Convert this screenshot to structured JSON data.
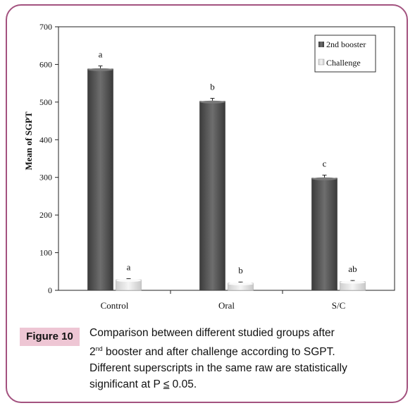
{
  "chart_data": {
    "type": "bar",
    "categories": [
      "Control",
      "Oral",
      "S/C"
    ],
    "series": [
      {
        "name": "2nd booster",
        "values": [
          588,
          502,
          298
        ],
        "errors": [
          8,
          8,
          8
        ],
        "letters": [
          "a",
          "b",
          "c"
        ],
        "color": "#555555"
      },
      {
        "name": "Challenge",
        "values": [
          28,
          19,
          23
        ],
        "errors": [
          3,
          3,
          3
        ],
        "letters": [
          "a",
          "b",
          "ab"
        ],
        "color": "#e6e6e6"
      }
    ],
    "ylabel": "Mean of SGPT",
    "xlabel": "",
    "ylim": [
      0,
      700
    ],
    "yticks": [
      0,
      100,
      200,
      300,
      400,
      500,
      600,
      700
    ],
    "legend_position": "top-right"
  },
  "caption": {
    "label": "Figure 10",
    "line1": "Comparison between different studied groups after",
    "line2_pre": "2",
    "line2_sup": "nd",
    "line2_post": " booster and after challenge according to SGPT.",
    "line3": "Different superscripts in the same raw are statistically",
    "line4_pre": "significant at P ",
    "line4_leq": "≤",
    "line4_post": " 0.05."
  }
}
